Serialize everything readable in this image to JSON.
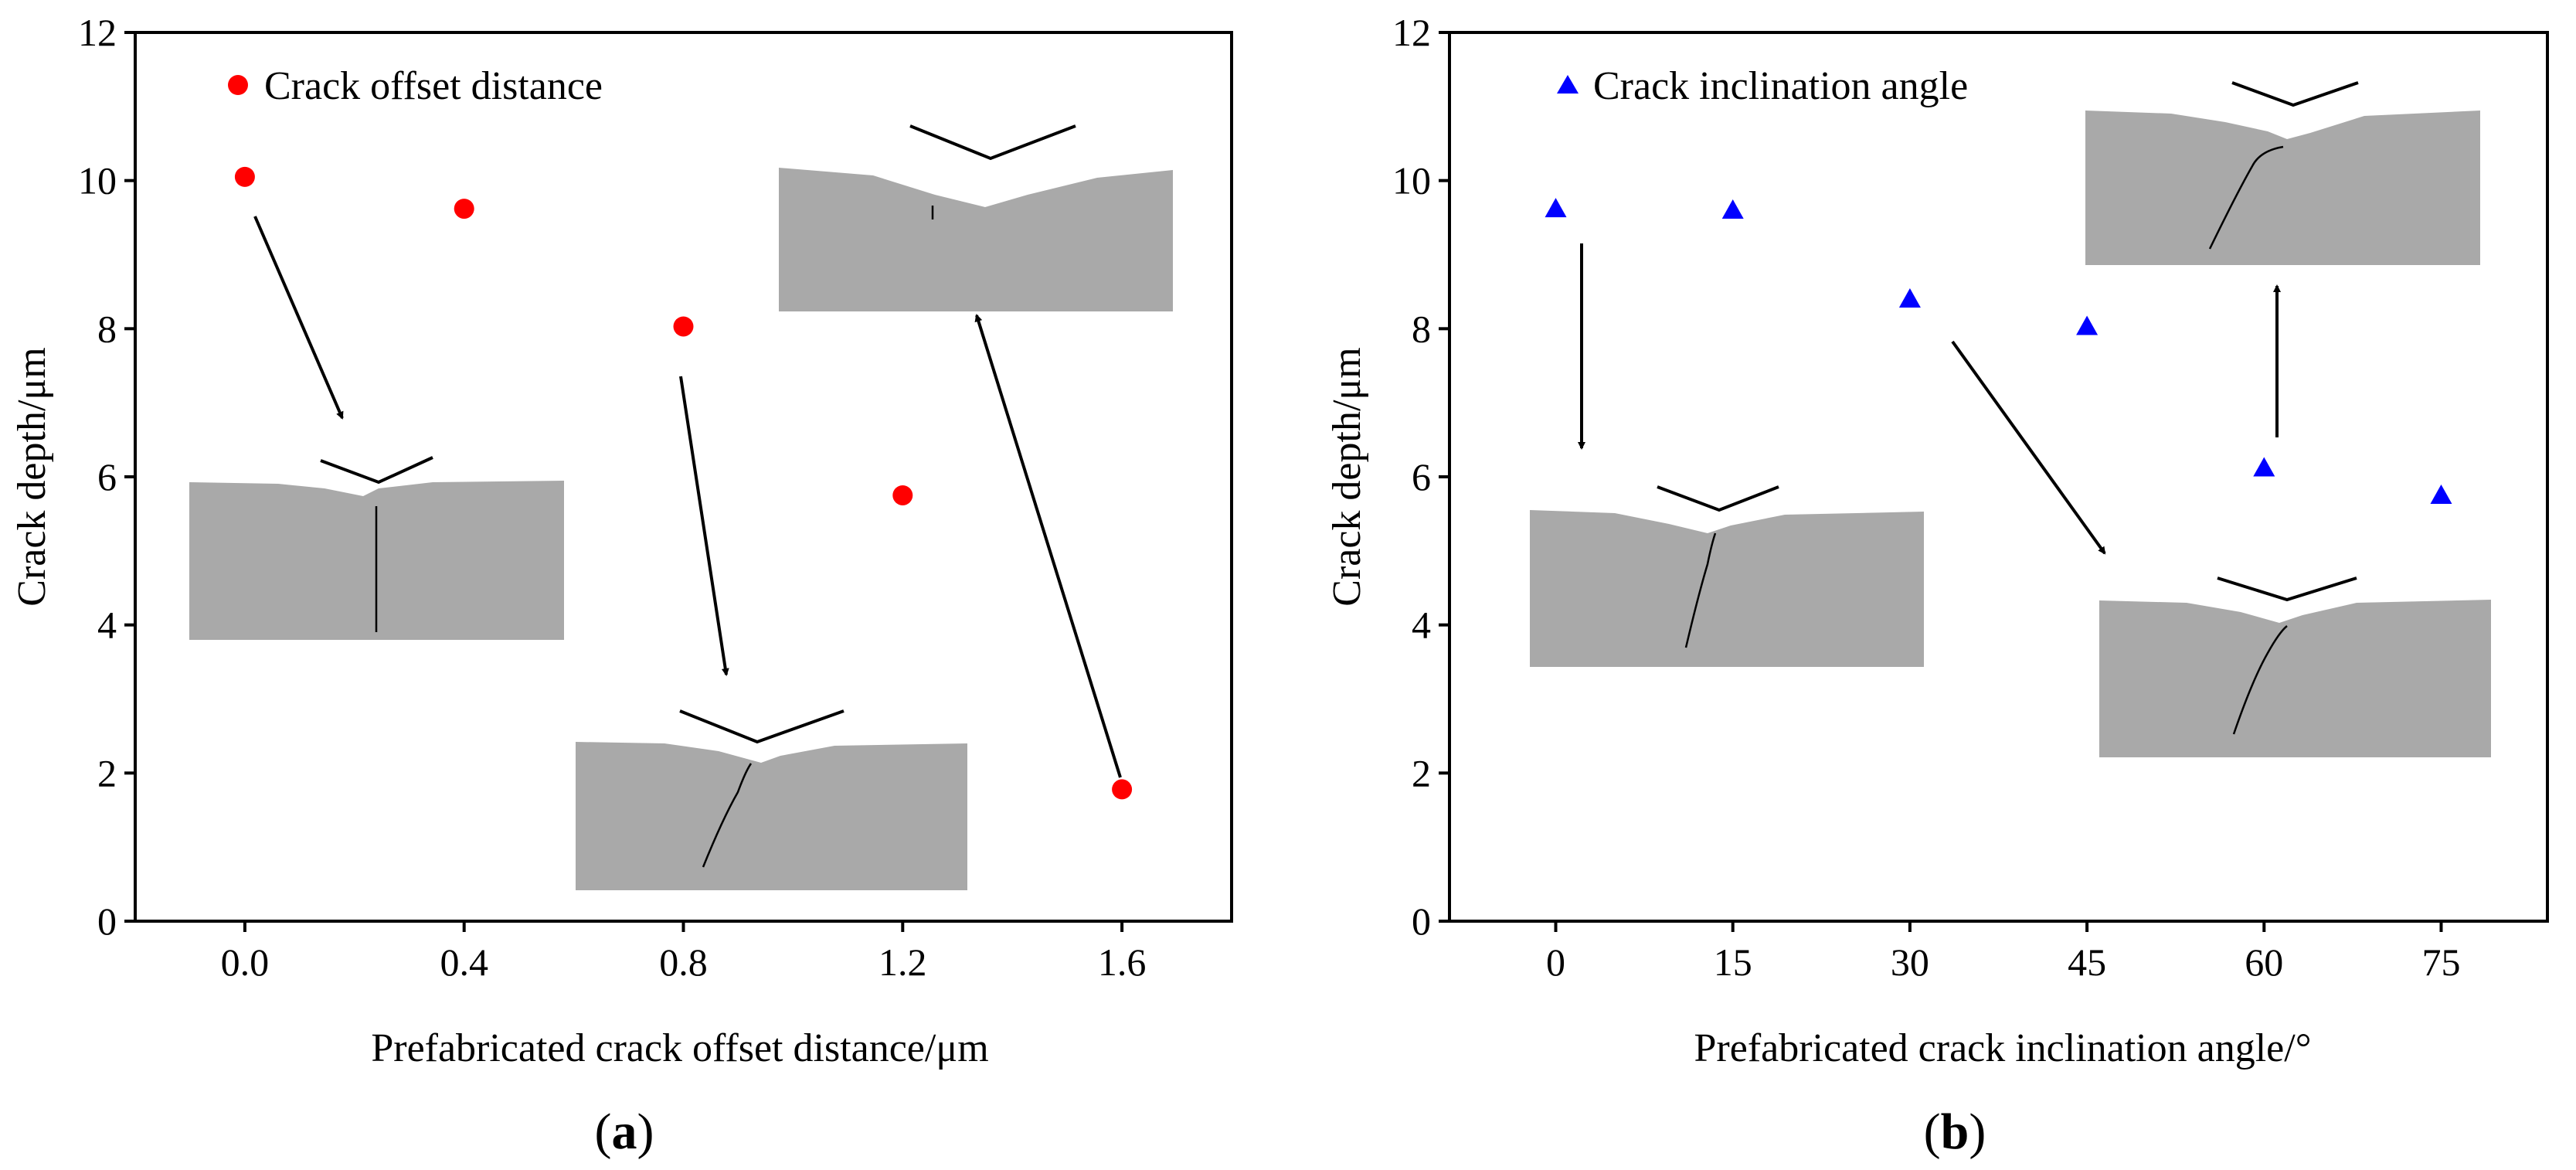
{
  "chart_data": [
    {
      "type": "scatter",
      "panel_label": "a",
      "xlabel": "Prefabricated crack offset distance/μm",
      "ylabel": "Crack depth/μm",
      "xlim": [
        -0.2,
        1.8
      ],
      "ylim": [
        0,
        12
      ],
      "xticks": [
        "0.0",
        "0.4",
        "0.8",
        "1.2",
        "1.6"
      ],
      "xtick_values": [
        0,
        0.4,
        0.8,
        1.2,
        1.6
      ],
      "yticks": [
        "0",
        "2",
        "4",
        "6",
        "8",
        "10",
        "12"
      ],
      "ytick_values": [
        0,
        2,
        4,
        6,
        8,
        10,
        12
      ],
      "series": [
        {
          "name": "Crack offset distance",
          "marker": "circle",
          "color": "#ff0000",
          "x": [
            0,
            0.4,
            0.8,
            1.2,
            1.6
          ],
          "y": [
            10.05,
            9.62,
            8.03,
            5.75,
            1.78
          ]
        }
      ],
      "legend_position": "top-left",
      "grid": false
    },
    {
      "type": "scatter",
      "panel_label": "b",
      "xlabel": "Prefabricated crack inclination angle/°",
      "ylabel": "Crack depth/μm",
      "xlim": [
        -9,
        84
      ],
      "ylim": [
        0,
        12
      ],
      "xticks": [
        "0",
        "15",
        "30",
        "45",
        "60",
        "75"
      ],
      "xtick_values": [
        0,
        15,
        30,
        45,
        60,
        75
      ],
      "yticks": [
        "0",
        "2",
        "4",
        "6",
        "8",
        "10",
        "12"
      ],
      "ytick_values": [
        0,
        2,
        4,
        6,
        8,
        10,
        12
      ],
      "series": [
        {
          "name": "Crack inclination angle",
          "marker": "triangle",
          "color": "#0000ff",
          "x": [
            0,
            15,
            30,
            45,
            60,
            75
          ],
          "y": [
            9.62,
            9.6,
            8.4,
            8.03,
            6.12,
            5.75
          ]
        }
      ],
      "legend_position": "top-left",
      "grid": false
    }
  ]
}
